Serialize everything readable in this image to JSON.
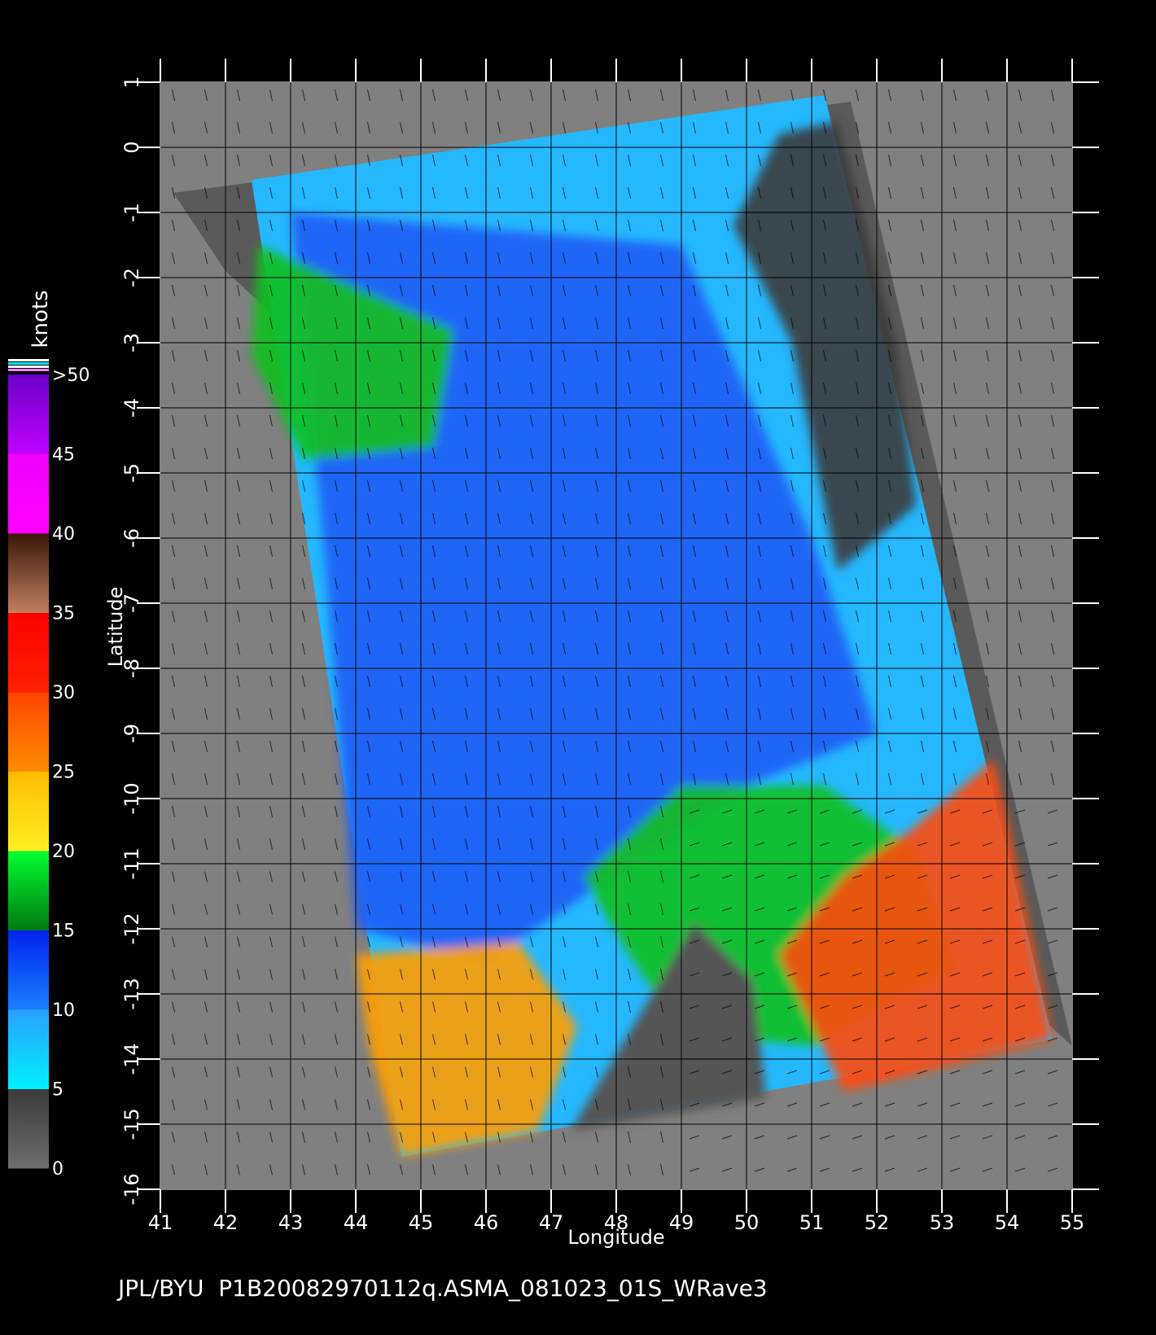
{
  "chart_data": {
    "type": "heatmap",
    "x_axis": {
      "label": "Longitude",
      "range": [
        41,
        55
      ],
      "ticks": [
        "41",
        "42",
        "43",
        "44",
        "45",
        "46",
        "47",
        "48",
        "49",
        "50",
        "51",
        "52",
        "53",
        "54",
        "55"
      ]
    },
    "y_axis": {
      "label": "Latitude",
      "range": [
        -16,
        1
      ],
      "ticks": [
        "1",
        "0",
        "-1",
        "-2",
        "-3",
        "-4",
        "-5",
        "-6",
        "-7",
        "-8",
        "-9",
        "-10",
        "-11",
        "-12",
        "-13",
        "-14",
        "-15",
        "-16"
      ]
    },
    "grid": true,
    "colorbar": {
      "title": "knots",
      "labels": [
        ">50",
        "45",
        "40",
        "35",
        "30",
        "25",
        "20",
        "15",
        "10",
        "5",
        "0"
      ],
      "bands": [
        {
          "from": 0,
          "to": 5,
          "colors": [
            "#6e6e6e",
            "#3a3a3a"
          ]
        },
        {
          "from": 5,
          "to": 10,
          "colors": [
            "#00f0ff",
            "#29a0ff"
          ]
        },
        {
          "from": 10,
          "to": 15,
          "colors": [
            "#1a80ff",
            "#0022ee"
          ]
        },
        {
          "from": 15,
          "to": 20,
          "colors": [
            "#007a10",
            "#00ff30"
          ]
        },
        {
          "from": 20,
          "to": 25,
          "colors": [
            "#fff020",
            "#ffbb00"
          ]
        },
        {
          "from": 25,
          "to": 30,
          "colors": [
            "#ff8c00",
            "#ff4400"
          ]
        },
        {
          "from": 30,
          "to": 35,
          "colors": [
            "#ff2000",
            "#ff0000"
          ]
        },
        {
          "from": 35,
          "to": 40,
          "colors": [
            "#c08060",
            "#3a1408"
          ]
        },
        {
          "from": 40,
          "to": 45,
          "colors": [
            "#ff00ff",
            "#ee00ff"
          ]
        },
        {
          "from": 45,
          "to": 50,
          "colors": [
            "#c000ff",
            "#6a00c8"
          ]
        }
      ]
    },
    "swath": {
      "corners_lonlat": [
        [
          42.4,
          -0.5
        ],
        [
          51.2,
          0.8
        ],
        [
          54.7,
          -13.7
        ],
        [
          44.7,
          -15.5
        ]
      ],
      "fill_corners_lonlat": [
        [
          41.2,
          -0.7
        ],
        [
          51.6,
          0.7
        ],
        [
          55.0,
          -13.8
        ],
        [
          42.0,
          -1.9
        ]
      ]
    },
    "wind_regions": [
      {
        "name": "NE calm area",
        "speed_band": "0-5",
        "polygon_lonlat": [
          [
            50.5,
            0.2
          ],
          [
            51.4,
            0.4
          ],
          [
            52.3,
            -3.0
          ],
          [
            52.6,
            -5.5
          ],
          [
            51.4,
            -6.5
          ],
          [
            50.7,
            -3.0
          ],
          [
            49.8,
            -1.2
          ]
        ]
      },
      {
        "name": "Central blue area",
        "speed_band": "10-15",
        "polygon_lonlat": [
          [
            43.0,
            -1.0
          ],
          [
            49.0,
            -1.5
          ],
          [
            51.0,
            -6.0
          ],
          [
            52.0,
            -9.0
          ],
          [
            50.0,
            -9.8
          ],
          [
            47.5,
            -11.5
          ],
          [
            46.0,
            -12.5
          ],
          [
            44.0,
            -12.0
          ],
          [
            43.5,
            -6.0
          ]
        ]
      },
      {
        "name": "NW green patches",
        "speed_band": "15-20",
        "polygon_lonlat": [
          [
            42.5,
            -1.5
          ],
          [
            45.5,
            -2.8
          ],
          [
            45.2,
            -4.6
          ],
          [
            43.2,
            -4.8
          ],
          [
            42.4,
            -3.2
          ]
        ]
      },
      {
        "name": "Cyclone ring",
        "speed_band": "15-25",
        "polygon_lonlat": [
          [
            47.5,
            -11.2
          ],
          [
            49.0,
            -9.8
          ],
          [
            51.2,
            -9.8
          ],
          [
            52.6,
            -10.8
          ],
          [
            53.2,
            -12.6
          ],
          [
            51.0,
            -13.8
          ],
          [
            49.0,
            -13.6
          ],
          [
            48.2,
            -12.4
          ]
        ]
      },
      {
        "name": "SE high winds",
        "speed_band": "25-35",
        "polygon_lonlat": [
          [
            52.5,
            -10.5
          ],
          [
            53.8,
            -9.4
          ],
          [
            54.7,
            -13.7
          ],
          [
            51.5,
            -14.5
          ],
          [
            50.5,
            -12.4
          ],
          [
            51.5,
            -11.2
          ]
        ]
      },
      {
        "name": "SW high winds",
        "speed_band": "20-30",
        "polygon_lonlat": [
          [
            44.0,
            -12.4
          ],
          [
            46.5,
            -12.2
          ],
          [
            47.4,
            -13.5
          ],
          [
            46.8,
            -15.1
          ],
          [
            44.7,
            -15.5
          ],
          [
            44.2,
            -13.8
          ]
        ]
      },
      {
        "name": "Madagascar landmass",
        "speed_band": "land",
        "polygon_lonlat": [
          [
            49.2,
            -11.9
          ],
          [
            50.1,
            -12.8
          ],
          [
            50.3,
            -14.6
          ],
          [
            47.3,
            -15.1
          ],
          [
            48.2,
            -13.6
          ]
        ]
      }
    ]
  },
  "footer": {
    "caption": "JPL/BYU  P1B20082970112q.ASMA_081023_01S_WRave3"
  }
}
